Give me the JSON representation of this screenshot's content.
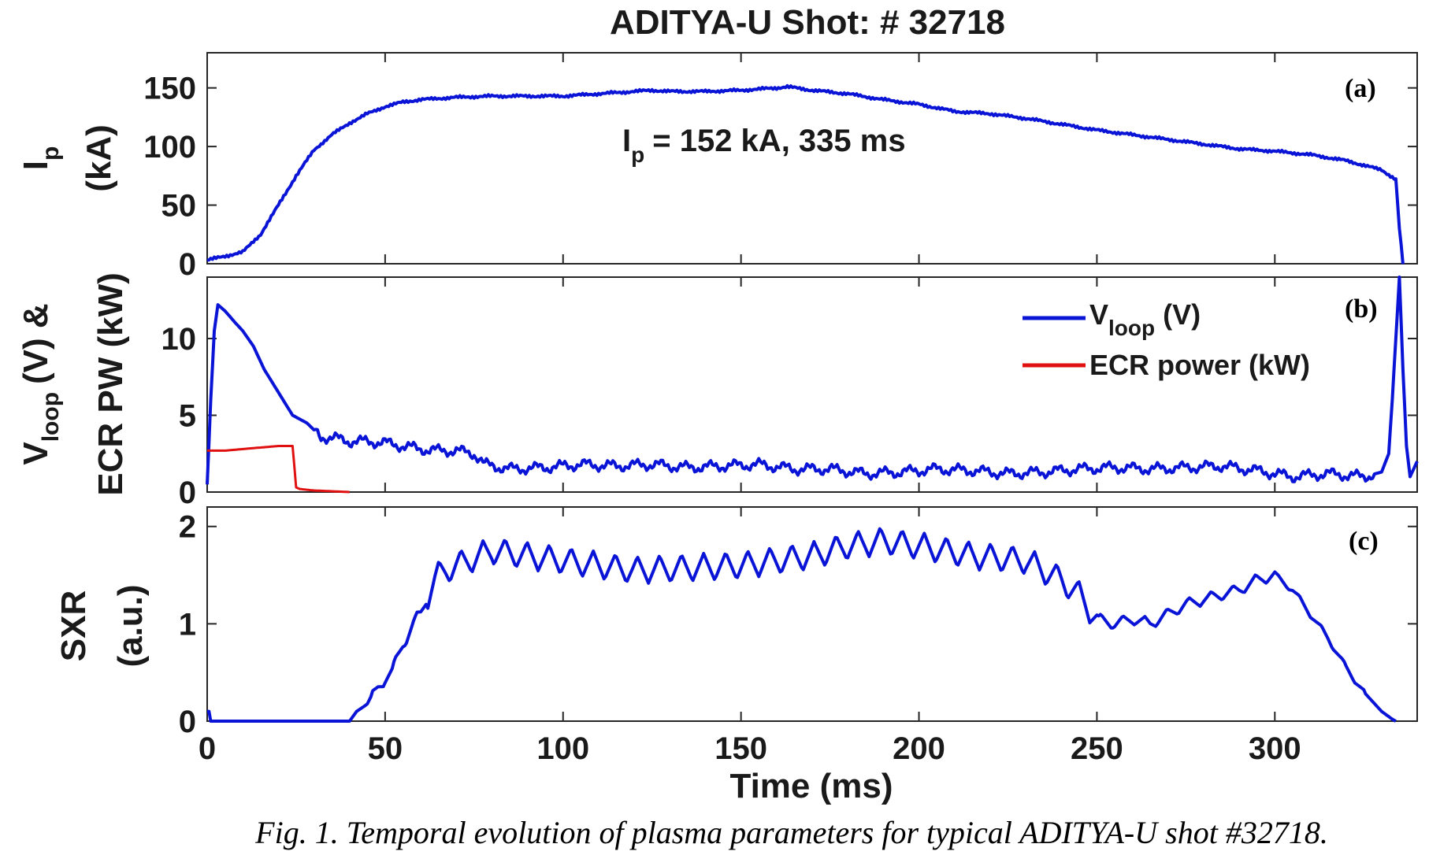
{
  "figure_title": "ADITYA-U Shot: # 32718",
  "caption": "Fig. 1. Temporal evolution of plasma parameters for typical ADITYA-U shot #32718.",
  "colors": {
    "vloop": "#0a14d6",
    "ecr": "#e01010",
    "ip": "#0a14d6",
    "sxr": "#0a14d6",
    "axis": "#262626"
  },
  "chart_data": [
    {
      "type": "line",
      "panel_tag": "(a)",
      "ylabel_main": "I",
      "ylabel_sub": "p",
      "ylabel_unit": "(kA)",
      "annotation_main": "I",
      "annotation_sub": "p",
      "annotation_rest": "= 152 kA, 335 ms",
      "xlim": [
        0,
        340
      ],
      "ylim": [
        0,
        180
      ],
      "yticks": [
        "0",
        "50",
        "100",
        "150"
      ],
      "grid": false,
      "series": [
        {
          "x": [
            0,
            10,
            15,
            20,
            25,
            30,
            35,
            40,
            45,
            50,
            55,
            60,
            65,
            70,
            80,
            90,
            100,
            110,
            120,
            125,
            130,
            140,
            150,
            160,
            163,
            170,
            180,
            190,
            200,
            210,
            220,
            230,
            240,
            250,
            260,
            270,
            280,
            290,
            300,
            310,
            320,
            330,
            334,
            335,
            336
          ],
          "y": [
            3,
            10,
            25,
            50,
            75,
            97,
            110,
            120,
            128,
            134,
            138,
            140,
            141,
            142,
            143,
            143,
            143,
            145,
            147,
            148,
            147,
            147,
            148,
            150,
            151,
            148,
            145,
            140,
            136,
            130,
            128,
            124,
            119,
            114,
            110,
            106,
            102,
            98,
            96,
            93,
            88,
            80,
            72,
            30,
            0
          ]
        }
      ]
    },
    {
      "type": "line",
      "panel_tag": "(b)",
      "ylabel_line1_main": "V",
      "ylabel_line1_sub": "loop",
      "ylabel_line1_rest": "(V) &",
      "ylabel_line2": "ECR PW (kW)",
      "xlim": [
        0,
        340
      ],
      "ylim": [
        0,
        14
      ],
      "yticks": [
        "0",
        "5",
        "10"
      ],
      "grid": false,
      "legend_placement": "top-right",
      "series": [
        {
          "name_main": "V",
          "name_sub": "loop",
          "name_rest": "(V)",
          "x": [
            0,
            1,
            2,
            3,
            5,
            8,
            10,
            13,
            16,
            20,
            24,
            28,
            32,
            36,
            40,
            45,
            50,
            55,
            60,
            65,
            70,
            75,
            78,
            85,
            95,
            105,
            115,
            125,
            135,
            145,
            155,
            165,
            175,
            185,
            195,
            205,
            215,
            225,
            235,
            245,
            255,
            265,
            275,
            285,
            295,
            305,
            315,
            325,
            330,
            332,
            333,
            334,
            335,
            336,
            337,
            338,
            340
          ],
          "y": [
            0.5,
            6,
            10.5,
            12.2,
            11.8,
            11,
            10.5,
            9.5,
            8,
            6.5,
            5,
            4.5,
            3.6,
            3.5,
            3.3,
            3.3,
            3.2,
            3.0,
            2.8,
            2.7,
            2.7,
            2.5,
            1.8,
            1.5,
            1.6,
            1.8,
            1.7,
            1.8,
            1.6,
            1.7,
            1.8,
            1.5,
            1.5,
            1.2,
            1.3,
            1.5,
            1.4,
            1.2,
            1.3,
            1.5,
            1.6,
            1.5,
            1.6,
            1.7,
            1.4,
            1.0,
            1.2,
            1.0,
            1.3,
            2.5,
            6,
            10,
            14,
            8,
            3,
            1,
            2
          ]
        },
        {
          "name": "ECR power (kW)",
          "x": [
            0,
            5,
            10,
            15,
            20,
            24,
            25,
            26,
            30,
            35,
            40
          ],
          "y": [
            2.7,
            2.7,
            2.8,
            2.9,
            3.0,
            3.0,
            0.3,
            0.2,
            0.1,
            0.05,
            0
          ]
        }
      ]
    },
    {
      "type": "line",
      "panel_tag": "(c)",
      "ylabel_line1": "SXR",
      "ylabel_line2": "(a.u.)",
      "xlabel": "Time (ms)",
      "xticks": [
        "0",
        "50",
        "100",
        "150",
        "200",
        "250",
        "300"
      ],
      "xlim": [
        0,
        340
      ],
      "ylim": [
        0,
        2.2
      ],
      "yticks": [
        "0",
        "1",
        "2"
      ],
      "grid": false,
      "series": [
        {
          "x": [
            0,
            0.5,
            1,
            40,
            42,
            44,
            46,
            48,
            50,
            52,
            55,
            58,
            60,
            62,
            64,
            65,
            67,
            70,
            80,
            100,
            120,
            150,
            170,
            180,
            190,
            200,
            215,
            230,
            240,
            245,
            250,
            255,
            260,
            265,
            270,
            275,
            280,
            290,
            295,
            300,
            305,
            310,
            315,
            320,
            325,
            330,
            333,
            334
          ],
          "y": [
            0.1,
            0.1,
            0,
            0,
            0.1,
            0.15,
            0.2,
            0.35,
            0.45,
            0.5,
            0.8,
            1.0,
            1.1,
            1.3,
            1.45,
            1.5,
            1.55,
            1.6,
            1.75,
            1.65,
            1.55,
            1.6,
            1.7,
            1.8,
            1.85,
            1.8,
            1.7,
            1.65,
            1.45,
            1.3,
            1.05,
            1.0,
            1.05,
            1.0,
            1.1,
            1.2,
            1.25,
            1.35,
            1.45,
            1.5,
            1.35,
            1.1,
            0.85,
            0.55,
            0.3,
            0.1,
            0.02,
            0
          ]
        }
      ]
    }
  ]
}
